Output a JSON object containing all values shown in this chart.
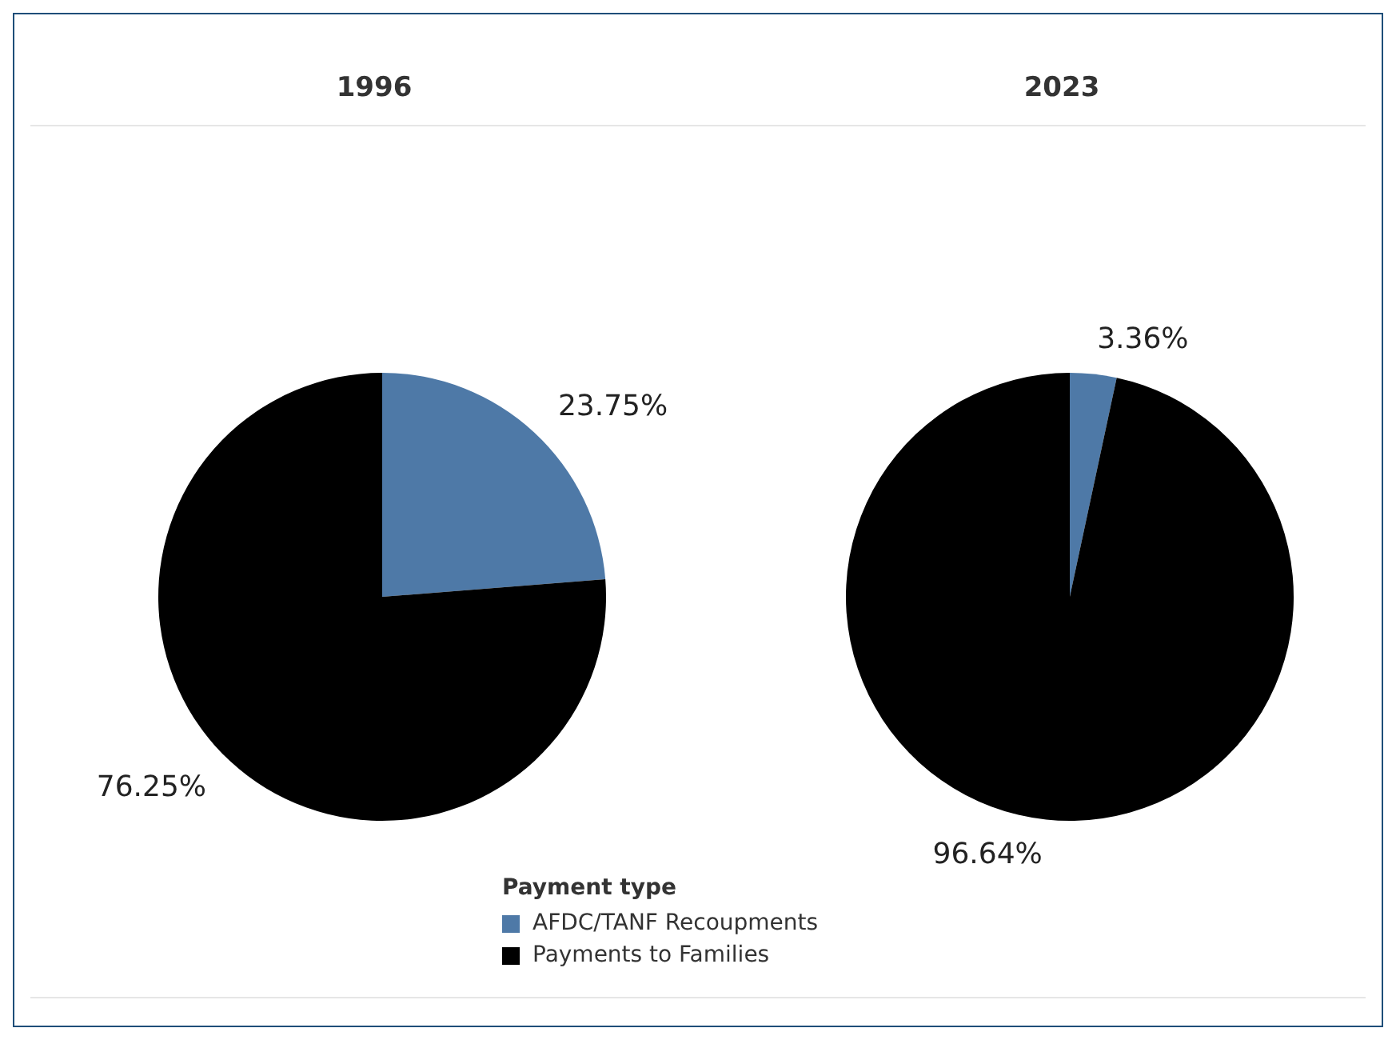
{
  "chart_data": [
    {
      "type": "pie",
      "title": "1996",
      "categories": [
        "AFDC/TANF Recoupments",
        "Payments to Families"
      ],
      "values": [
        23.75,
        76.25
      ],
      "colors": [
        "#4e79a7",
        "#000000"
      ],
      "value_labels": [
        "23.75%",
        "76.25%"
      ],
      "legend": "bottom",
      "legend_title": "Payment type"
    },
    {
      "type": "pie",
      "title": "2023",
      "categories": [
        null,
        null
      ],
      "values": [
        3.36,
        96.64
      ],
      "colors": [
        "#4e79a7",
        "#000000"
      ],
      "value_labels": [
        "3.36%",
        "96.64%"
      ]
    }
  ]
}
